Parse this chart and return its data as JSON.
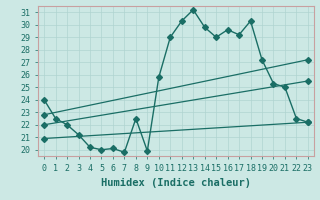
{
  "title": "",
  "xlabel": "Humidex (Indice chaleur)",
  "bg_color": "#cce8e4",
  "grid_color": "#b0d4d0",
  "line_color": "#1a6e65",
  "xlim": [
    -0.5,
    23.5
  ],
  "ylim": [
    19.5,
    31.5
  ],
  "yticks": [
    20,
    21,
    22,
    23,
    24,
    25,
    26,
    27,
    28,
    29,
    30,
    31
  ],
  "xticks": [
    0,
    1,
    2,
    3,
    4,
    5,
    6,
    7,
    8,
    9,
    10,
    11,
    12,
    13,
    14,
    15,
    16,
    17,
    18,
    19,
    20,
    21,
    22,
    23
  ],
  "main_x": [
    0,
    1,
    2,
    3,
    4,
    5,
    6,
    7,
    8,
    9,
    10,
    11,
    12,
    13,
    14,
    15,
    16,
    17,
    18,
    19,
    20,
    21,
    22,
    23
  ],
  "main_y": [
    24.0,
    22.5,
    22.0,
    21.2,
    20.2,
    20.0,
    20.1,
    19.8,
    22.5,
    19.9,
    25.8,
    29.0,
    30.3,
    31.2,
    29.8,
    29.0,
    29.6,
    29.2,
    30.3,
    27.2,
    25.3,
    25.0,
    22.5,
    22.2
  ],
  "trend1_x": [
    0,
    23
  ],
  "trend1_y": [
    22.8,
    27.2
  ],
  "trend2_x": [
    0,
    23
  ],
  "trend2_y": [
    22.0,
    25.5
  ],
  "trend3_x": [
    0,
    23
  ],
  "trend3_y": [
    20.9,
    22.2
  ],
  "marker": "D",
  "markersize": 3,
  "linewidth": 1.0,
  "trend_linewidth": 0.9,
  "tick_fontsize": 6,
  "label_fontsize": 7.5
}
